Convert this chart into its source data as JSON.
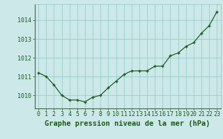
{
  "x": [
    0,
    1,
    2,
    3,
    4,
    5,
    6,
    7,
    8,
    9,
    10,
    11,
    12,
    13,
    14,
    15,
    16,
    17,
    18,
    19,
    20,
    21,
    22,
    23
  ],
  "y": [
    1011.2,
    1011.0,
    1010.55,
    1010.0,
    1009.75,
    1009.75,
    1009.65,
    1009.9,
    1010.0,
    1010.4,
    1010.75,
    1011.1,
    1011.3,
    1011.3,
    1011.3,
    1011.55,
    1011.55,
    1012.1,
    1012.25,
    1012.6,
    1012.8,
    1013.3,
    1013.7,
    1014.45
  ],
  "line_color": "#1a5c1a",
  "marker_color": "#1a5c1a",
  "bg_color": "#cce8e8",
  "grid_color": "#99cccc",
  "title": "Graphe pression niveau de la mer (hPa)",
  "title_color": "#1a5c1a",
  "ylim_min": 1009.3,
  "ylim_max": 1014.85,
  "yticks": [
    1010,
    1011,
    1012,
    1013,
    1014
  ],
  "xticks": [
    0,
    1,
    2,
    3,
    4,
    5,
    6,
    7,
    8,
    9,
    10,
    11,
    12,
    13,
    14,
    15,
    16,
    17,
    18,
    19,
    20,
    21,
    22,
    23
  ],
  "tick_color": "#1a5c1a",
  "font_size_title": 7.5,
  "font_size_ticks": 6.0
}
